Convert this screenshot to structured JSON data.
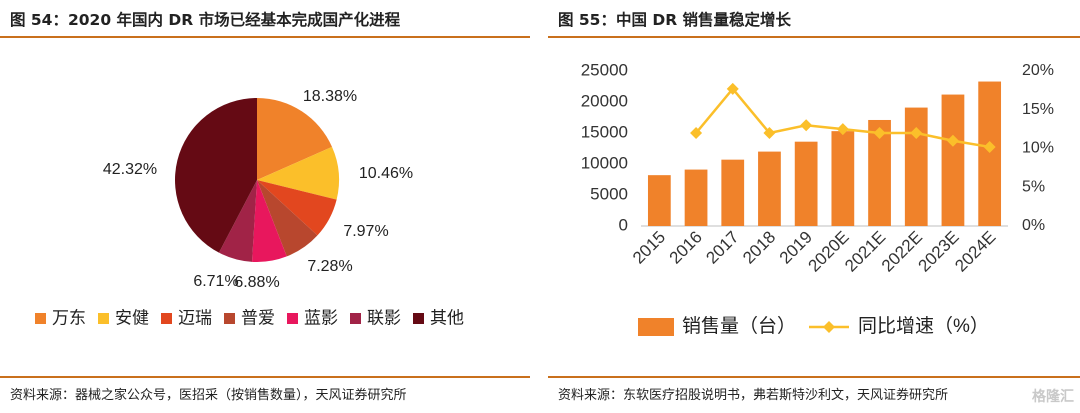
{
  "left": {
    "title": "图 54：2020 年国内 DR 市场已经基本完成国产化进程",
    "source": "资料来源：器械之家公众号，医招采（按销售数量），天风证券研究所"
  },
  "right": {
    "title": "图 55：中国 DR 销售量稳定增长",
    "source": "资料来源：东软医疗招股说明书，弗若斯特沙利文，天风证券研究所"
  },
  "watermark": "格隆汇",
  "chart_data": [
    {
      "type": "pie",
      "title": "",
      "labels": [
        "万东",
        "安健",
        "迈瑞",
        "普爱",
        "蓝影",
        "联影",
        "其他"
      ],
      "values": [
        18.38,
        10.46,
        7.97,
        7.28,
        6.88,
        6.71,
        42.32
      ],
      "value_labels": [
        "18.38%",
        "10.46%",
        "7.97%",
        "7.28%",
        "6.88%",
        "6.71%",
        "42.32%"
      ],
      "colors": [
        "#f0822a",
        "#fbbf2a",
        "#e2471f",
        "#b8472e",
        "#e8175d",
        "#a12347",
        "#650a14"
      ],
      "legend": "bottom"
    },
    {
      "type": "bar+line",
      "title": "",
      "categories": [
        "2015",
        "2016",
        "2017",
        "2018",
        "2019",
        "2020E",
        "2021E",
        "2022E",
        "2023E",
        "2024E"
      ],
      "series": [
        {
          "name": "销售量（台）",
          "type": "bar",
          "axis": "left",
          "color": "#f0822a",
          "values": [
            8200,
            9100,
            10700,
            12000,
            13600,
            15300,
            17100,
            19100,
            21200,
            23300
          ]
        },
        {
          "name": "同比增速（%）",
          "type": "line",
          "axis": "right",
          "color": "#fbbf2a",
          "values": [
            null,
            12.0,
            17.7,
            12.0,
            13.0,
            12.5,
            12.0,
            12.0,
            11.0,
            10.2
          ]
        }
      ],
      "ylim_left": [
        0,
        25000
      ],
      "yticks_left": [
        "0",
        "5000",
        "10000",
        "15000",
        "20000",
        "25000"
      ],
      "ylim_right": [
        0,
        20
      ],
      "yticks_right": [
        "0%",
        "5%",
        "10%",
        "15%",
        "20%"
      ],
      "legend": "bottom",
      "grid": false
    }
  ]
}
